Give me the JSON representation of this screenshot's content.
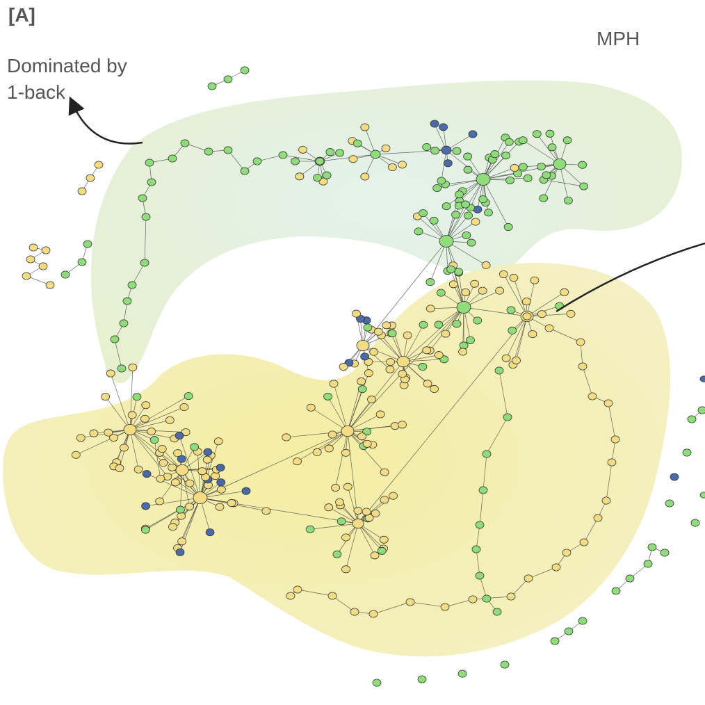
{
  "panel_label": "[A]",
  "cluster_label": "MPH",
  "annotation": "Dominated by\n1-back",
  "colors": {
    "yellow_node": "#f4dc85",
    "green_node": "#8fdc7a",
    "blue_node": "#4a6aa8",
    "node_stroke": "#333333",
    "edge": "#333333",
    "region_green": "#d7ecc8",
    "region_yellow": "#eeeb9e",
    "arrow": "#222222",
    "text": "#555555"
  }
}
